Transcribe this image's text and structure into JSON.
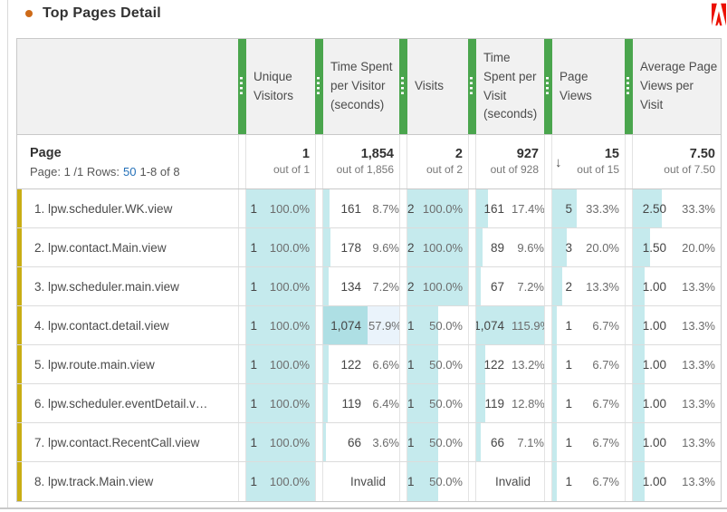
{
  "title": "Top Pages Detail",
  "sort_indicator": "↓",
  "colors": {
    "accent_green": "#4aa54d",
    "bar_cyan": "#c5eaed",
    "bar_cyan_dark": "#aedfe4",
    "highlight_blue": "#eaf3fb",
    "row_marker_yellow": "#c9ae14",
    "title_bullet_orange": "#cd6a18",
    "logo_red": "#eb1000",
    "link_blue": "#2470b8"
  },
  "page_header": {
    "label": "Page",
    "pagination_prefix": "Page: 1 /1 Rows:",
    "rows_link": "50",
    "range": "1-8 of 8"
  },
  "columns": [
    {
      "id": "uv",
      "label": "Unique Visitors",
      "total": "1",
      "out_of": "out of 1"
    },
    {
      "id": "tspvisitor",
      "label": "Time Spent per Visitor (seconds)",
      "total": "1,854",
      "out_of": "out of 1,856"
    },
    {
      "id": "visits",
      "label": "Visits",
      "total": "2",
      "out_of": "out of 2"
    },
    {
      "id": "tspvisit",
      "label": "Time Spent per Visit (seconds)",
      "total": "927",
      "out_of": "out of 928"
    },
    {
      "id": "pv",
      "label": "Page Views",
      "total": "15",
      "out_of": "out of 15",
      "sorted": true
    },
    {
      "id": "avg",
      "label": "Average Page Views per Visit",
      "total": "7.50",
      "out_of": "out of 7.50"
    }
  ],
  "rows": [
    {
      "name": "1. lpw.scheduler.WK.view",
      "cells": [
        {
          "v": "1",
          "p": "100.0%",
          "bar": 100
        },
        {
          "v": "161",
          "p": "8.7%",
          "bar": 8.7
        },
        {
          "v": "2",
          "p": "100.0%",
          "bar": 100
        },
        {
          "v": "161",
          "p": "17.4%",
          "bar": 17.4
        },
        {
          "v": "5",
          "p": "33.3%",
          "bar": 33.3
        },
        {
          "v": "2.50",
          "p": "33.3%",
          "bar": 33.3
        }
      ]
    },
    {
      "name": "2. lpw.contact.Main.view",
      "cells": [
        {
          "v": "1",
          "p": "100.0%",
          "bar": 100
        },
        {
          "v": "178",
          "p": "9.6%",
          "bar": 9.6
        },
        {
          "v": "2",
          "p": "100.0%",
          "bar": 100
        },
        {
          "v": "89",
          "p": "9.6%",
          "bar": 9.6
        },
        {
          "v": "3",
          "p": "20.0%",
          "bar": 20
        },
        {
          "v": "1.50",
          "p": "20.0%",
          "bar": 20
        }
      ]
    },
    {
      "name": "3. lpw.scheduler.main.view",
      "cells": [
        {
          "v": "1",
          "p": "100.0%",
          "bar": 100
        },
        {
          "v": "134",
          "p": "7.2%",
          "bar": 7.2
        },
        {
          "v": "2",
          "p": "100.0%",
          "bar": 100
        },
        {
          "v": "67",
          "p": "7.2%",
          "bar": 7.2
        },
        {
          "v": "2",
          "p": "13.3%",
          "bar": 13.3
        },
        {
          "v": "1.00",
          "p": "13.3%",
          "bar": 13.3
        }
      ]
    },
    {
      "name": "4. lpw.contact.detail.view",
      "cells": [
        {
          "v": "1",
          "p": "100.0%",
          "bar": 100
        },
        {
          "v": "1,074",
          "p": "57.9%",
          "bar": 57.9,
          "hl": true
        },
        {
          "v": "1",
          "p": "50.0%",
          "bar": 50
        },
        {
          "v": "1,074",
          "p": "115.9%",
          "bar": 100
        },
        {
          "v": "1",
          "p": "6.7%",
          "bar": 6.7
        },
        {
          "v": "1.00",
          "p": "13.3%",
          "bar": 13.3
        }
      ]
    },
    {
      "name": "5. lpw.route.main.view",
      "cells": [
        {
          "v": "1",
          "p": "100.0%",
          "bar": 100
        },
        {
          "v": "122",
          "p": "6.6%",
          "bar": 6.6
        },
        {
          "v": "1",
          "p": "50.0%",
          "bar": 50
        },
        {
          "v": "122",
          "p": "13.2%",
          "bar": 13.2
        },
        {
          "v": "1",
          "p": "6.7%",
          "bar": 6.7
        },
        {
          "v": "1.00",
          "p": "13.3%",
          "bar": 13.3
        }
      ]
    },
    {
      "name": "6. lpw.scheduler.eventDetail.v…",
      "cells": [
        {
          "v": "1",
          "p": "100.0%",
          "bar": 100
        },
        {
          "v": "119",
          "p": "6.4%",
          "bar": 6.4
        },
        {
          "v": "1",
          "p": "50.0%",
          "bar": 50
        },
        {
          "v": "119",
          "p": "12.8%",
          "bar": 12.8
        },
        {
          "v": "1",
          "p": "6.7%",
          "bar": 6.7
        },
        {
          "v": "1.00",
          "p": "13.3%",
          "bar": 13.3
        }
      ]
    },
    {
      "name": "7. lpw.contact.RecentCall.view",
      "cells": [
        {
          "v": "1",
          "p": "100.0%",
          "bar": 100
        },
        {
          "v": "66",
          "p": "3.6%",
          "bar": 3.6
        },
        {
          "v": "1",
          "p": "50.0%",
          "bar": 50
        },
        {
          "v": "66",
          "p": "7.1%",
          "bar": 7.1
        },
        {
          "v": "1",
          "p": "6.7%",
          "bar": 6.7
        },
        {
          "v": "1.00",
          "p": "13.3%",
          "bar": 13.3
        }
      ]
    },
    {
      "name": "8. lpw.track.Main.view",
      "cells": [
        {
          "v": "1",
          "p": "100.0%",
          "bar": 100
        },
        {
          "v": "",
          "p": "Invalid",
          "bar": 0,
          "invalid": true
        },
        {
          "v": "1",
          "p": "50.0%",
          "bar": 50
        },
        {
          "v": "",
          "p": "Invalid",
          "bar": 0,
          "invalid": true
        },
        {
          "v": "1",
          "p": "6.7%",
          "bar": 6.7
        },
        {
          "v": "1.00",
          "p": "13.3%",
          "bar": 13.3
        }
      ]
    }
  ]
}
